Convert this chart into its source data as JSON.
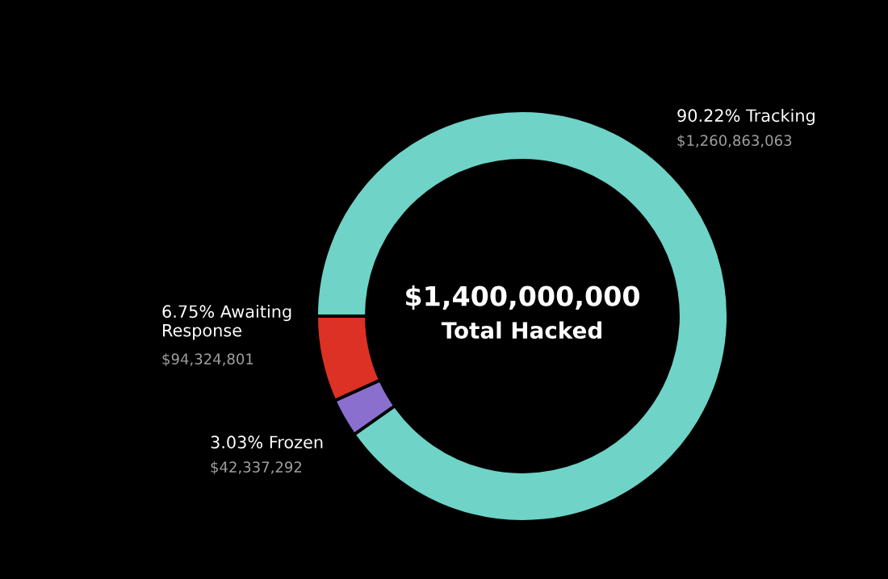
{
  "chart_data": {
    "type": "donut",
    "categories": [
      "6.75% Awaiting Response",
      "3.03% Frozen",
      "90.22% Tracking"
    ],
    "values": [
      94324801,
      42337292,
      1260863063
    ],
    "colors": [
      "#dc3124",
      "#8a6fcf",
      "#6fd3c7"
    ],
    "value_labels": [
      "$94,324,801",
      "$42,337,292",
      "$1,260,863,063"
    ],
    "annotations": [
      "$1,400,000,000",
      "Total Hacked"
    ]
  }
}
